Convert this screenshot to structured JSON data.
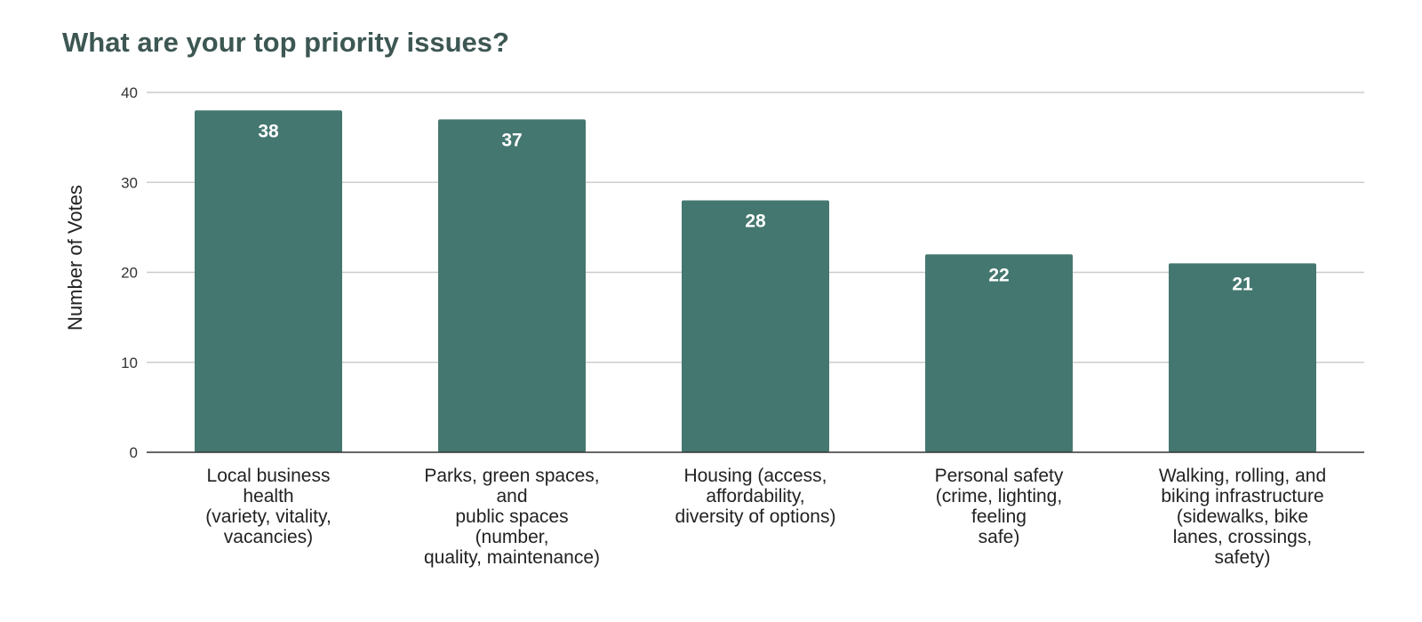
{
  "chart_data": {
    "type": "bar",
    "title": "What are your top priority issues?",
    "xlabel": "",
    "ylabel": "Number of Votes",
    "ylim": [
      0,
      40
    ],
    "yticks": [
      0,
      10,
      20,
      30,
      40
    ],
    "grid": true,
    "bar_color": "#44776f",
    "categories": [
      [
        "Local business",
        "health",
        "(variety, vitality,",
        "vacancies)"
      ],
      [
        "Parks, green spaces,",
        "and",
        "public spaces",
        "(number,",
        "quality, maintenance)"
      ],
      [
        "Housing (access,",
        "affordability,",
        "diversity of options)"
      ],
      [
        "Personal safety",
        "(crime, lighting,",
        "feeling",
        "safe)"
      ],
      [
        "Walking, rolling, and",
        "biking infrastructure",
        "(sidewalks, bike",
        "lanes, crossings,",
        "safety)"
      ]
    ],
    "values": [
      38,
      37,
      28,
      22,
      21
    ]
  }
}
